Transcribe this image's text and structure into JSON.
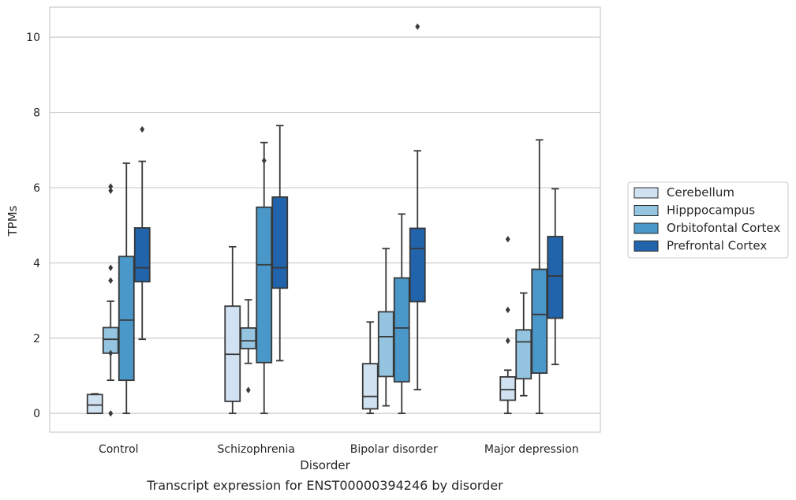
{
  "caption": "Transcript expression for ENST00000394246 by disorder",
  "chart_data": {
    "type": "boxplot",
    "xlabel": "Disorder",
    "ylabel": "TPMs",
    "ylim": [
      -0.5,
      10.8
    ],
    "yticks": [
      0,
      2,
      4,
      6,
      8,
      10
    ],
    "grid": "horizontal",
    "legend_position": "right",
    "categories": [
      "Control",
      "Schizophrenia",
      "Bipolar disorder",
      "Major depression"
    ],
    "series": [
      {
        "name": "Cerebellum",
        "color": "#d0e1f2",
        "boxes": [
          {
            "whislo": 0,
            "q1": 0,
            "med": 0.22,
            "q3": 0.5,
            "whishi": 0.52,
            "fliers": []
          },
          {
            "whislo": 0,
            "q1": 0.32,
            "med": 1.57,
            "q3": 2.85,
            "whishi": 4.43,
            "fliers": []
          },
          {
            "whislo": 0,
            "q1": 0.12,
            "med": 0.45,
            "q3": 1.32,
            "whishi": 2.43,
            "fliers": []
          },
          {
            "whislo": 0,
            "q1": 0.35,
            "med": 0.63,
            "q3": 0.97,
            "whishi": 1.15,
            "fliers": [
              1.93,
              2.75,
              4.63
            ]
          }
        ]
      },
      {
        "name": "Hipppocampus",
        "color": "#94c4df",
        "boxes": [
          {
            "whislo": 0.88,
            "q1": 1.6,
            "med": 1.97,
            "q3": 2.28,
            "whishi": 2.98,
            "fliers": [
              0,
              1.6,
              3.53,
              3.87,
              5.92,
              6.03
            ]
          },
          {
            "whislo": 1.33,
            "q1": 1.72,
            "med": 1.93,
            "q3": 2.27,
            "whishi": 3.02,
            "fliers": [
              0.62
            ]
          },
          {
            "whislo": 0.2,
            "q1": 0.98,
            "med": 2.04,
            "q3": 2.7,
            "whishi": 4.38,
            "fliers": []
          },
          {
            "whislo": 0.47,
            "q1": 0.92,
            "med": 1.9,
            "q3": 2.22,
            "whishi": 3.2,
            "fliers": []
          }
        ]
      },
      {
        "name": "Orbitofontal Cortex",
        "color": "#4a98c9",
        "boxes": [
          {
            "whislo": 0,
            "q1": 0.88,
            "med": 2.48,
            "q3": 4.17,
            "whishi": 6.65,
            "fliers": []
          },
          {
            "whislo": 0,
            "q1": 1.35,
            "med": 3.95,
            "q3": 5.48,
            "whishi": 7.2,
            "fliers": [
              6.72
            ]
          },
          {
            "whislo": 0,
            "q1": 0.84,
            "med": 2.27,
            "q3": 3.6,
            "whishi": 5.3,
            "fliers": []
          },
          {
            "whislo": 0,
            "q1": 1.07,
            "med": 2.63,
            "q3": 3.83,
            "whishi": 7.27,
            "fliers": []
          }
        ]
      },
      {
        "name": "Prefrontal Cortex",
        "color": "#2164ab",
        "boxes": [
          {
            "whislo": 1.97,
            "q1": 3.5,
            "med": 3.87,
            "q3": 4.93,
            "whishi": 6.7,
            "fliers": [
              7.55
            ]
          },
          {
            "whislo": 1.4,
            "q1": 3.33,
            "med": 3.87,
            "q3": 5.75,
            "whishi": 7.65,
            "fliers": []
          },
          {
            "whislo": 0.63,
            "q1": 2.97,
            "med": 4.38,
            "q3": 4.92,
            "whishi": 6.98,
            "fliers": [
              10.28
            ]
          },
          {
            "whislo": 1.3,
            "q1": 2.53,
            "med": 3.65,
            "q3": 4.7,
            "whishi": 5.97,
            "fliers": []
          }
        ]
      }
    ]
  }
}
